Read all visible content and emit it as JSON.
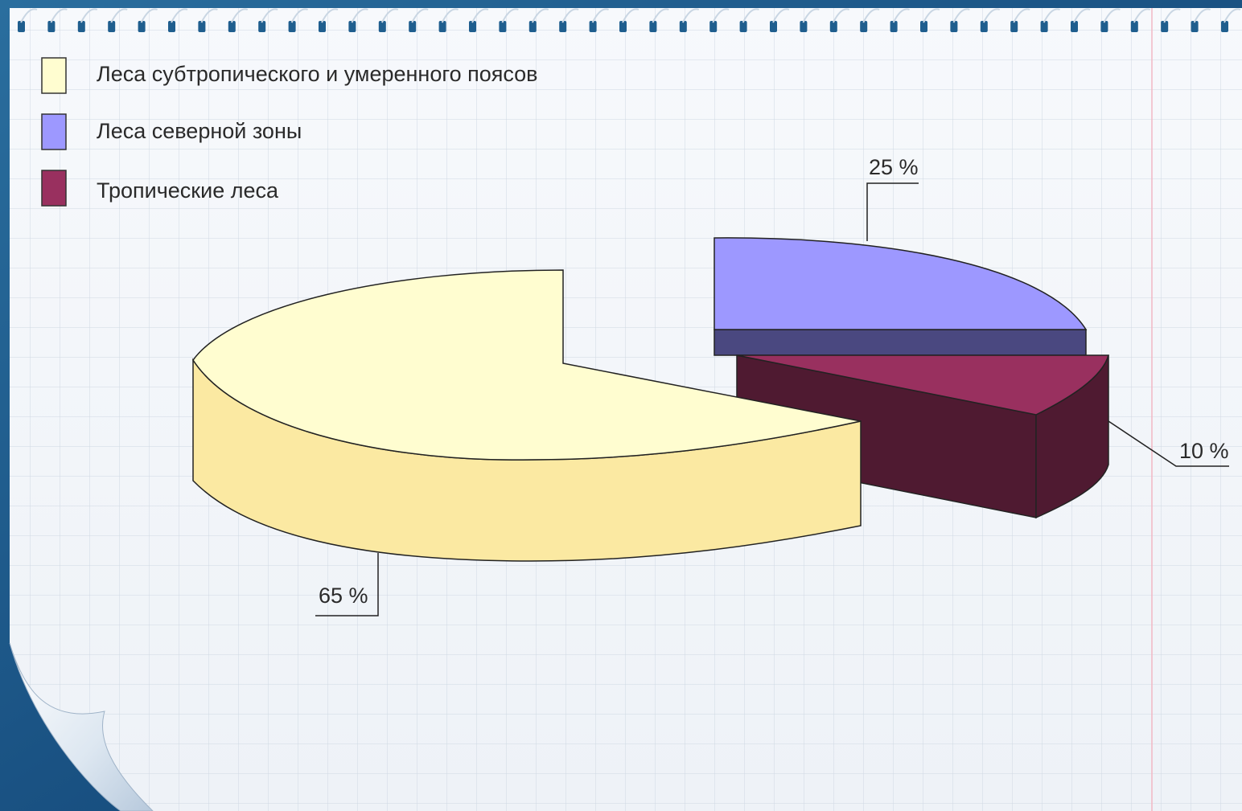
{
  "chart_data": {
    "type": "pie",
    "three_d": true,
    "exploded": true,
    "legend_position": "top-left",
    "series": [
      {
        "label": "Леса субтропического и умеренного поясов",
        "value": 65,
        "value_label": "65 %",
        "color": "#fffdd0",
        "side_color": "#fbe9a2"
      },
      {
        "label": "Леса северной зоны",
        "value": 25,
        "value_label": "25 %",
        "color": "#9d98ff",
        "side_color": "#4a4880"
      },
      {
        "label": "Тропические леса",
        "value": 10,
        "value_label": "10 %",
        "color": "#99305f",
        "side_color": "#4f1a31"
      }
    ]
  }
}
